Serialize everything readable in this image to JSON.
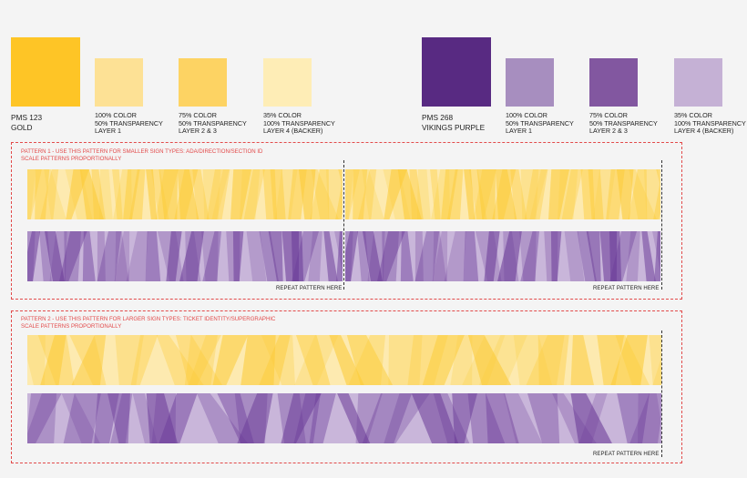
{
  "palette": {
    "gold": {
      "primary": {
        "pms": "PMS 123",
        "name": "GOLD",
        "color": "#fec526"
      },
      "variants": [
        {
          "lines": [
            "100% COLOR",
            "50% TRANSPARENCY",
            "LAYER 1"
          ],
          "color": "#fde195"
        },
        {
          "lines": [
            "75% COLOR",
            "50% TRANSPARENCY",
            "LAYER 2 & 3"
          ],
          "color": "#fdd363"
        },
        {
          "lines": [
            "35% COLOR",
            "100% TRANSPARENCY",
            "LAYER 4 (BACKER)"
          ],
          "color": "#feedb6"
        }
      ]
    },
    "purple": {
      "primary": {
        "pms": "PMS 268",
        "name": "VIKINGS PURPLE",
        "color": "#582a82"
      },
      "variants": [
        {
          "lines": [
            "100% COLOR",
            "50% TRANSPARENCY",
            "LAYER 1"
          ],
          "color": "#a78ebf"
        },
        {
          "lines": [
            "75% COLOR",
            "50% TRANSPARENCY",
            "LAYER 2 & 3"
          ],
          "color": "#8257a0"
        },
        {
          "lines": [
            "35% COLOR",
            "100% TRANSPARENCY",
            "LAYER 4 (BACKER)"
          ],
          "color": "#c5b1d5"
        }
      ]
    }
  },
  "pattern1": {
    "title": "PATTERN 1 - USE THIS PATTERN FOR SMALLER SIGN TYPES: ADA/DIRECTION/SECTION ID",
    "subtitle": "SCALE PATTERNS PROPORTIONALLY",
    "repeat_labels": [
      "REPEAT PATTERN HERE",
      "REPEAT PATTERN HERE"
    ]
  },
  "pattern2": {
    "title": "PATTERN 2 - USE THIS PATTERN FOR LARGER SIGN TYPES: TICKET IDENTITY/SUPERGRAPHIC",
    "subtitle": "SCALE PATTERNS PROPORTIONALLY",
    "repeat_label": "REPEAT PATTERN HERE"
  },
  "colors": {
    "guide_red": "#e24a4a",
    "gold_backer": "#fdeab0",
    "gold_layer": "#fccb36",
    "purple_backer": "#c9b6da",
    "purple_layer": "#6a3a98"
  }
}
